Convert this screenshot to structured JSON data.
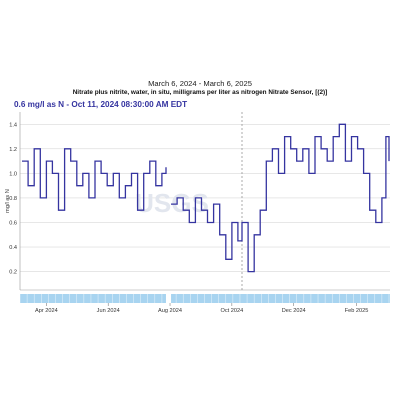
{
  "header": {
    "date_range": "March 6, 2024 - March 6, 2025",
    "title": "Nitrate plus nitrite, water, in situ, milligrams per liter as nitrogen Nitrate Sensor, [(2)]",
    "readout": "0.6 mg/l as N - Oct 11, 2024 08:30:00 AM EDT"
  },
  "watermark": "USGS",
  "colors": {
    "line": "#3534a0",
    "approval_bar": "#a8d4f0",
    "approval_bar_tick": "#ffffff",
    "grid": "#cfcfcf",
    "cursor": "#888888"
  },
  "chart_data": {
    "type": "line",
    "title": "Nitrate plus nitrite, water, in situ, milligrams per liter as nitrogen Nitrate Sensor, [(2)]",
    "xlabel": "",
    "ylabel": "mg/l as N",
    "x_range": [
      "2024-03-06",
      "2025-03-06"
    ],
    "ylim": [
      0.05,
      1.5
    ],
    "yticks": [
      0.2,
      0.4,
      0.6,
      0.8,
      1.0,
      1.2,
      1.4
    ],
    "ytick_labels": [
      "0.2",
      "0.4",
      "0.6",
      "0.8",
      "1.0",
      "1.2",
      "1.4"
    ],
    "xticks": [
      {
        "label": "Apr 2024",
        "date": "2024-04-01"
      },
      {
        "label": "Jun 2024",
        "date": "2024-06-01"
      },
      {
        "label": "Aug 2024",
        "date": "2024-08-01"
      },
      {
        "label": "Oct 2024",
        "date": "2024-10-01"
      },
      {
        "label": "Dec 2024",
        "date": "2024-12-01"
      },
      {
        "label": "Feb 2025",
        "date": "2025-02-01"
      }
    ],
    "grid": true,
    "cursor_date": "2024-10-11",
    "gap": [
      "2024-07-28",
      "2024-08-02"
    ],
    "series": [
      {
        "name": "",
        "x": [
          "2024-03-08",
          "2024-03-14",
          "2024-03-20",
          "2024-03-26",
          "2024-04-01",
          "2024-04-07",
          "2024-04-13",
          "2024-04-19",
          "2024-04-25",
          "2024-05-01",
          "2024-05-07",
          "2024-05-13",
          "2024-05-19",
          "2024-05-25",
          "2024-05-31",
          "2024-06-06",
          "2024-06-12",
          "2024-06-18",
          "2024-06-24",
          "2024-06-30",
          "2024-07-06",
          "2024-07-12",
          "2024-07-18",
          "2024-07-24",
          "2024-07-28",
          "2024-08-02",
          "2024-08-08",
          "2024-08-14",
          "2024-08-20",
          "2024-08-26",
          "2024-09-01",
          "2024-09-07",
          "2024-09-13",
          "2024-09-19",
          "2024-09-25",
          "2024-10-01",
          "2024-10-07",
          "2024-10-11",
          "2024-10-17",
          "2024-10-23",
          "2024-10-29",
          "2024-11-04",
          "2024-11-10",
          "2024-11-16",
          "2024-11-22",
          "2024-11-28",
          "2024-12-04",
          "2024-12-10",
          "2024-12-16",
          "2024-12-22",
          "2024-12-28",
          "2025-01-03",
          "2025-01-09",
          "2025-01-15",
          "2025-01-21",
          "2025-01-27",
          "2025-02-02",
          "2025-02-08",
          "2025-02-14",
          "2025-02-20",
          "2025-02-26",
          "2025-03-02",
          "2025-03-05"
        ],
        "y": [
          1.1,
          0.9,
          1.2,
          0.8,
          1.1,
          1.0,
          0.7,
          1.2,
          1.1,
          0.9,
          1.0,
          0.8,
          1.1,
          1.0,
          0.9,
          1.0,
          0.8,
          0.9,
          1.0,
          0.7,
          1.0,
          1.1,
          0.9,
          1.0,
          1.05,
          0.75,
          0.8,
          0.7,
          0.6,
          0.8,
          0.7,
          0.6,
          0.75,
          0.5,
          0.3,
          0.6,
          0.45,
          0.6,
          0.2,
          0.5,
          0.7,
          1.1,
          1.2,
          1.0,
          1.3,
          1.2,
          1.1,
          1.2,
          1.0,
          1.3,
          1.2,
          1.1,
          1.3,
          1.4,
          1.1,
          1.3,
          1.2,
          1.0,
          0.7,
          0.6,
          0.8,
          1.3,
          1.1
        ]
      }
    ]
  }
}
